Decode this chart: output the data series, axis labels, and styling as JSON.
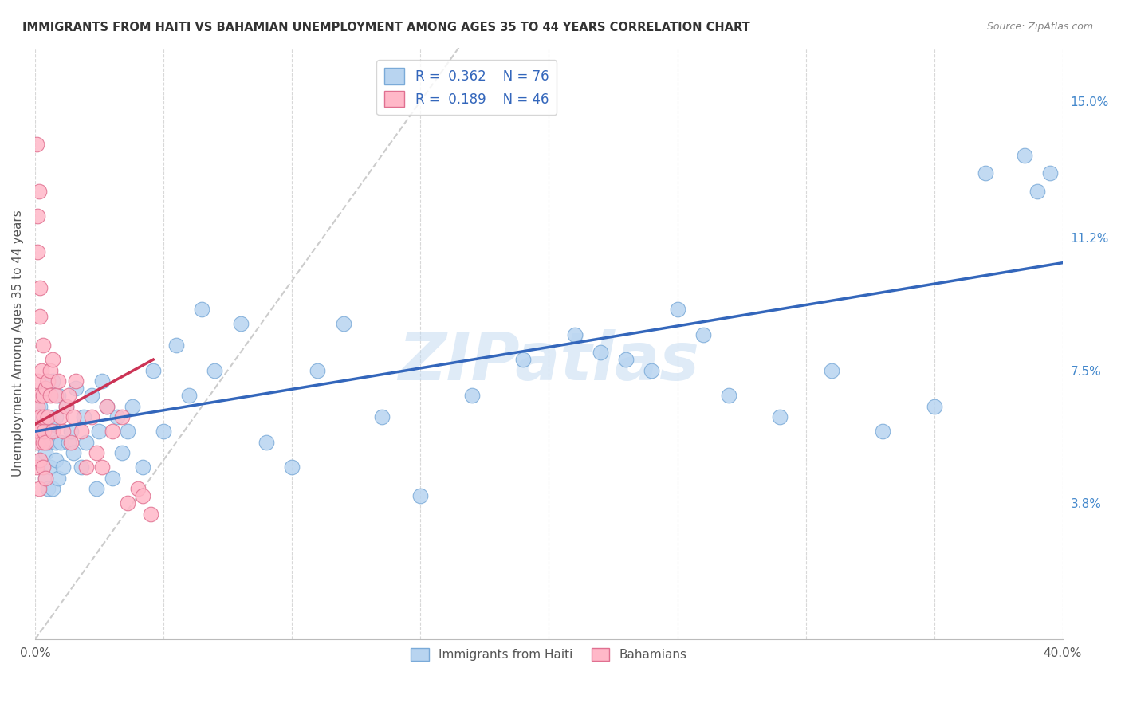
{
  "title": "IMMIGRANTS FROM HAITI VS BAHAMIAN UNEMPLOYMENT AMONG AGES 35 TO 44 YEARS CORRELATION CHART",
  "source": "Source: ZipAtlas.com",
  "ylabel": "Unemployment Among Ages 35 to 44 years",
  "xlim": [
    0.0,
    0.4
  ],
  "ylim": [
    0.0,
    0.165
  ],
  "x_ticks": [
    0.0,
    0.05,
    0.1,
    0.15,
    0.2,
    0.25,
    0.3,
    0.35,
    0.4
  ],
  "x_tick_labels": [
    "0.0%",
    "",
    "",
    "",
    "",
    "",
    "",
    "",
    "40.0%"
  ],
  "y_ticks_right": [
    0.0,
    0.038,
    0.057,
    0.075,
    0.094,
    0.112,
    0.131,
    0.15
  ],
  "y_tick_labels_right": [
    "",
    "3.8%",
    "",
    "7.5%",
    "",
    "11.2%",
    "",
    "15.0%"
  ],
  "legend_haiti_R": "0.362",
  "legend_haiti_N": "76",
  "legend_bahamas_R": "0.189",
  "legend_bahamas_N": "46",
  "haiti_color": "#b8d4f0",
  "haiti_edge_color": "#7aaad8",
  "bahamas_color": "#ffb8c8",
  "bahamas_edge_color": "#e07090",
  "trend_haiti_color": "#3366bb",
  "trend_bahamas_color": "#cc3355",
  "diagonal_color": "#cccccc",
  "watermark": "ZIPatlas",
  "haiti_scatter_x": [
    0.001,
    0.001,
    0.002,
    0.002,
    0.002,
    0.003,
    0.003,
    0.003,
    0.004,
    0.004,
    0.004,
    0.005,
    0.005,
    0.005,
    0.006,
    0.006,
    0.006,
    0.007,
    0.007,
    0.007,
    0.008,
    0.008,
    0.008,
    0.009,
    0.009,
    0.01,
    0.011,
    0.012,
    0.013,
    0.014,
    0.015,
    0.016,
    0.018,
    0.019,
    0.02,
    0.022,
    0.024,
    0.025,
    0.026,
    0.028,
    0.03,
    0.032,
    0.034,
    0.036,
    0.038,
    0.042,
    0.046,
    0.05,
    0.055,
    0.06,
    0.065,
    0.07,
    0.08,
    0.09,
    0.1,
    0.11,
    0.12,
    0.135,
    0.15,
    0.17,
    0.19,
    0.21,
    0.23,
    0.25,
    0.27,
    0.29,
    0.31,
    0.33,
    0.35,
    0.37,
    0.385,
    0.39,
    0.395,
    0.22,
    0.24,
    0.26
  ],
  "haiti_scatter_y": [
    0.06,
    0.055,
    0.063,
    0.05,
    0.065,
    0.048,
    0.058,
    0.068,
    0.045,
    0.052,
    0.07,
    0.042,
    0.055,
    0.062,
    0.048,
    0.056,
    0.06,
    0.042,
    0.06,
    0.072,
    0.05,
    0.062,
    0.055,
    0.045,
    0.068,
    0.055,
    0.048,
    0.065,
    0.055,
    0.058,
    0.052,
    0.07,
    0.048,
    0.062,
    0.055,
    0.068,
    0.042,
    0.058,
    0.072,
    0.065,
    0.045,
    0.062,
    0.052,
    0.058,
    0.065,
    0.048,
    0.075,
    0.058,
    0.082,
    0.068,
    0.092,
    0.075,
    0.088,
    0.055,
    0.048,
    0.075,
    0.088,
    0.062,
    0.04,
    0.068,
    0.078,
    0.085,
    0.078,
    0.092,
    0.068,
    0.062,
    0.075,
    0.058,
    0.065,
    0.13,
    0.135,
    0.125,
    0.13,
    0.08,
    0.075,
    0.085
  ],
  "bahamas_scatter_x": [
    0.0005,
    0.0005,
    0.001,
    0.001,
    0.001,
    0.0015,
    0.0015,
    0.002,
    0.002,
    0.002,
    0.0025,
    0.003,
    0.003,
    0.003,
    0.0035,
    0.0035,
    0.004,
    0.004,
    0.004,
    0.005,
    0.005,
    0.006,
    0.006,
    0.007,
    0.007,
    0.008,
    0.009,
    0.01,
    0.011,
    0.012,
    0.013,
    0.014,
    0.015,
    0.016,
    0.018,
    0.02,
    0.022,
    0.024,
    0.026,
    0.028,
    0.03,
    0.034,
    0.036,
    0.04,
    0.042,
    0.045
  ],
  "bahamas_scatter_y": [
    0.058,
    0.048,
    0.065,
    0.072,
    0.055,
    0.042,
    0.058,
    0.068,
    0.05,
    0.062,
    0.075,
    0.048,
    0.055,
    0.068,
    0.058,
    0.062,
    0.045,
    0.07,
    0.055,
    0.062,
    0.072,
    0.068,
    0.075,
    0.058,
    0.078,
    0.068,
    0.072,
    0.062,
    0.058,
    0.065,
    0.068,
    0.055,
    0.062,
    0.072,
    0.058,
    0.048,
    0.062,
    0.052,
    0.048,
    0.065,
    0.058,
    0.062,
    0.038,
    0.042,
    0.04,
    0.035
  ],
  "bahamas_high_x": [
    0.0005,
    0.001,
    0.001,
    0.0015,
    0.002,
    0.002,
    0.003
  ],
  "bahamas_high_y": [
    0.138,
    0.118,
    0.108,
    0.125,
    0.098,
    0.09,
    0.082
  ]
}
